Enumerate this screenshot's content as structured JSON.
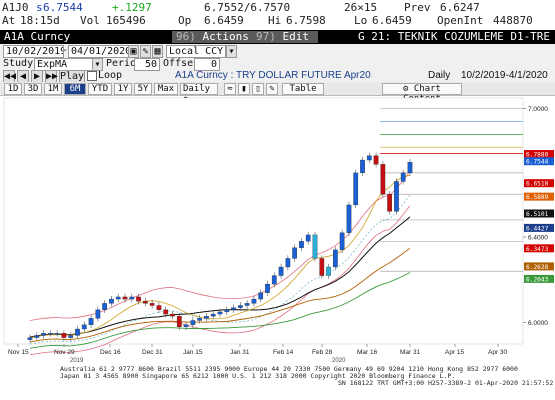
{
  "quote": {
    "ticker": "A1J0",
    "last_prefix": "s",
    "last": "6.7544",
    "change": "+.1297",
    "bid_ask": "6.7552/6.7570",
    "size": "26×15",
    "prev_label": "Prev",
    "prev": "6.6247",
    "at_label": "At",
    "time": "18:15d",
    "vol_label": "Vol",
    "vol": "165496",
    "open_label": "Op",
    "open": "6.6459",
    "hi_label": "Hi",
    "hi": "6.7598",
    "lo_label": "Lo",
    "lo": "6.6459",
    "oi_label": "OpenInt",
    "oi": "448870"
  },
  "titlebar": {
    "security": "A1A Curncy",
    "actions_num": "96)",
    "actions": "Actions",
    "edit_num": "97)",
    "edit": "Edit",
    "page_title": "G 21: TEKNIK COZUMLEME D1-TRE"
  },
  "controls": {
    "date_from": "10/02/2019",
    "date_to": "04/01/2020",
    "ccy": "Local CCY",
    "study_label": "Study",
    "study": "ExpMA",
    "period_label": "Period",
    "period": "50",
    "offset_label": "Offset",
    "offset": "0",
    "play": "Play",
    "loop": "Loop",
    "chart_desc": "A1A Curncy : TRY DOLLAR FUTURE Apr20",
    "frequency": "Daily",
    "range": "10/2/2019-4/1/2020"
  },
  "tabs": {
    "items": [
      "1D",
      "3D",
      "1M",
      "6M",
      "YTD",
      "1Y",
      "5Y",
      "Max"
    ],
    "active": "6M",
    "freq": "Daily",
    "table": "Table",
    "chart_content": "Chart Content"
  },
  "chart_data": {
    "type": "candlestick",
    "title": "",
    "x_tick_labels": [
      "Nov 15",
      "Nov 29",
      "Dec 16",
      "Dec 31",
      "Jan 15",
      "Jan 31",
      "Feb 14",
      "Feb 28",
      "Mar 16",
      "Mar 31",
      "Apr 15",
      "Apr 30"
    ],
    "x_year_labels": [
      "2019",
      "2020"
    ],
    "y_tick_labels": [
      "7.0000",
      "6.4000",
      "6.0000"
    ],
    "y_range": [
      5.9,
      7.05
    ],
    "close_series": [
      5.93,
      5.94,
      5.95,
      5.95,
      5.95,
      5.93,
      5.94,
      5.97,
      5.99,
      6.02,
      6.06,
      6.09,
      6.11,
      6.12,
      6.11,
      6.12,
      6.1,
      6.09,
      6.08,
      6.06,
      6.04,
      6.03,
      5.98,
      5.99,
      6.01,
      6.02,
      6.03,
      6.04,
      6.05,
      6.06,
      6.07,
      6.08,
      6.09,
      6.11,
      6.14,
      6.18,
      6.22,
      6.26,
      6.3,
      6.35,
      6.38,
      6.41,
      6.3,
      6.22,
      6.26,
      6.34,
      6.42,
      6.55,
      6.7,
      6.76,
      6.78,
      6.74,
      6.6,
      6.52,
      6.66,
      6.7,
      6.75
    ],
    "last_values": [
      {
        "label": "6.7880",
        "color": "#d40000"
      },
      {
        "label": "6.7544",
        "color": "#1b5fd4"
      },
      {
        "label": "6.6518",
        "color": "#d40000"
      },
      {
        "label": "6.5889",
        "color": "#e06000"
      },
      {
        "label": "6.5101",
        "color": "#111111"
      },
      {
        "label": "6.4427",
        "color": "#1b3f8a"
      },
      {
        "label": "6.3473",
        "color": "#d40000"
      },
      {
        "label": "6.2628",
        "color": "#b06000"
      },
      {
        "label": "6.2043",
        "color": "#3a9a3a"
      }
    ]
  },
  "footer": {
    "line1": "Australia 61 2 9777 8600  Brazil 5511 2395 9000  Europe 44 20 7330 7500  Germany 49 69 9204 1210  Hong Kong 852 2977 6000",
    "line2": "Japan 81 3 4565 8900        Singapore 65 6212 1000        U.S. 1 212 318 2000       Copyright 2020 Bloomberg Finance L.P.",
    "line3": "SN 168122 TRT  GMT+3:00 H257-3389-2 01-Apr-2020 21:57:52"
  },
  "colors": {
    "candle_up": "#1b5fd4",
    "candle_down": "#c41010",
    "highlight_candle": "#2ab0d8",
    "ema": "#111111"
  }
}
